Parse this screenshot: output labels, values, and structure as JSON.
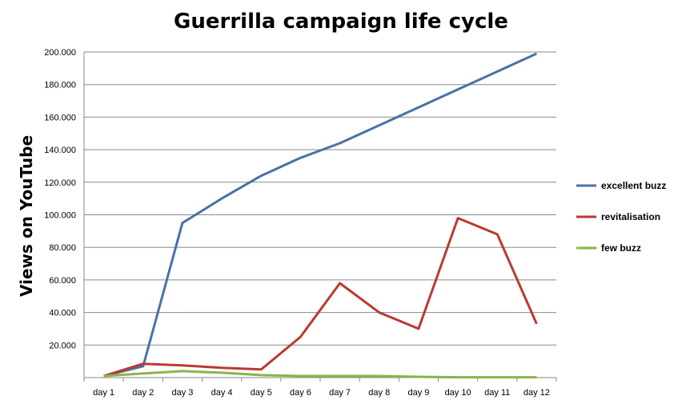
{
  "chart_data": {
    "type": "line",
    "title": "Guerrilla campaign life cycle",
    "ylabel": "Views on YouTube",
    "xlabel": "",
    "categories": [
      "day 1",
      "day 2",
      "day 3",
      "day 4",
      "day 5",
      "day 6",
      "day 7",
      "day 8",
      "day 9",
      "day 10",
      "day 11",
      "day 12"
    ],
    "y_ticks": [
      20000,
      40000,
      60000,
      80000,
      100000,
      120000,
      140000,
      160000,
      180000,
      200000
    ],
    "y_tick_labels": [
      "20.000",
      "40.000",
      "60.000",
      "80.000",
      "100.000",
      "120.000",
      "140.000",
      "160.000",
      "180.000",
      "200.000"
    ],
    "ylim": [
      0,
      200000
    ],
    "grid": true,
    "legend_position": "right",
    "series": [
      {
        "name": "excellent buzz",
        "color": "#4a71a8",
        "values": [
          1000,
          7000,
          95000,
          110000,
          124000,
          135000,
          144000,
          155000,
          166000,
          177000,
          188000,
          199000
        ]
      },
      {
        "name": "revitalisation",
        "color": "#b93a32",
        "values": [
          1000,
          8500,
          7500,
          6000,
          5000,
          25000,
          58000,
          40000,
          30000,
          98000,
          88000,
          33000
        ]
      },
      {
        "name": "few buzz",
        "color": "#8db24a",
        "values": [
          1000,
          2500,
          4000,
          3000,
          1500,
          1000,
          1000,
          1000,
          500,
          200,
          200,
          200
        ]
      }
    ]
  }
}
